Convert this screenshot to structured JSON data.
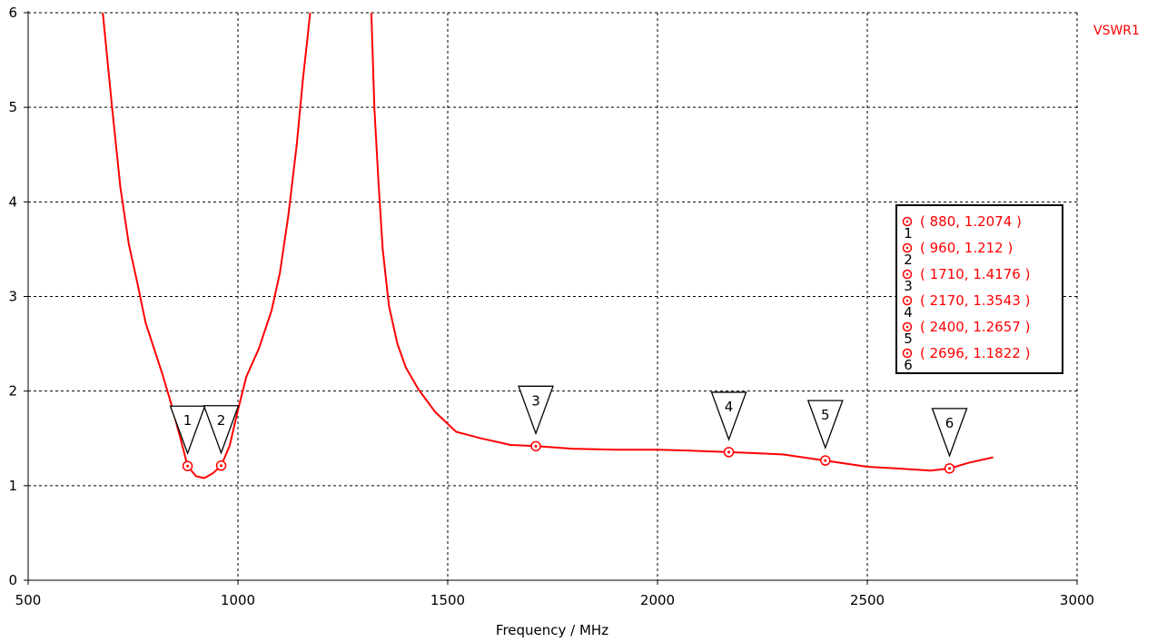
{
  "chart_data": {
    "type": "line",
    "xlabel": "Frequency / MHz",
    "ylabel": "",
    "xlim": [
      500,
      3000
    ],
    "ylim": [
      0,
      6
    ],
    "x_ticks": [
      "500",
      "1000",
      "1500",
      "2000",
      "2500",
      "3000"
    ],
    "y_ticks": [
      "0",
      "1",
      "2",
      "3",
      "4",
      "5",
      "6"
    ],
    "grid": true,
    "legend_position": "top-right",
    "series": [
      {
        "name": "VSWR1",
        "color": "#ff0000",
        "segments": [
          {
            "x": [
              678,
              700,
              720,
              740,
              760,
              780,
              800,
              820,
              840,
              860,
              880,
              900,
              920,
              940,
              960,
              980,
              1000,
              1020,
              1050,
              1080,
              1100,
              1120,
              1140,
              1155,
              1165,
              1172
            ],
            "y": [
              6.0,
              5.0,
              4.15,
              3.55,
              3.15,
              2.72,
              2.45,
              2.18,
              1.88,
              1.55,
              1.2074,
              1.1,
              1.08,
              1.13,
              1.212,
              1.42,
              1.8,
              2.15,
              2.45,
              2.85,
              3.25,
              3.85,
              4.6,
              5.3,
              5.7,
              6.0
            ]
          },
          {
            "x": [
              1318,
              1325,
              1335,
              1345,
              1360,
              1380,
              1400,
              1430,
              1470,
              1520,
              1580,
              1650,
              1710,
              1800,
              1900,
              2000,
              2080,
              2170,
              2250,
              2300,
              2400,
              2500,
              2580,
              2650,
              2696,
              2740,
              2800
            ],
            "y": [
              6.0,
              5.0,
              4.2,
              3.5,
              2.9,
              2.5,
              2.25,
              2.02,
              1.78,
              1.57,
              1.5,
              1.43,
              1.4176,
              1.39,
              1.38,
              1.38,
              1.37,
              1.3543,
              1.34,
              1.33,
              1.2657,
              1.2,
              1.18,
              1.16,
              1.1822,
              1.24,
              1.3
            ]
          }
        ]
      }
    ],
    "markers": [
      {
        "id": "1",
        "x": 880,
        "y": 1.2074,
        "label": "( 880, 1.2074 )"
      },
      {
        "id": "2",
        "x": 960,
        "y": 1.212,
        "label": "( 960, 1.212 )"
      },
      {
        "id": "3",
        "x": 1710,
        "y": 1.4176,
        "label": "( 1710, 1.4176 )"
      },
      {
        "id": "4",
        "x": 2170,
        "y": 1.3543,
        "label": "( 2170, 1.3543 )"
      },
      {
        "id": "5",
        "x": 2400,
        "y": 1.2657,
        "label": "( 2400, 1.2657 )"
      },
      {
        "id": "6",
        "x": 2696,
        "y": 1.1822,
        "label": "( 2696, 1.1822 )"
      }
    ]
  }
}
